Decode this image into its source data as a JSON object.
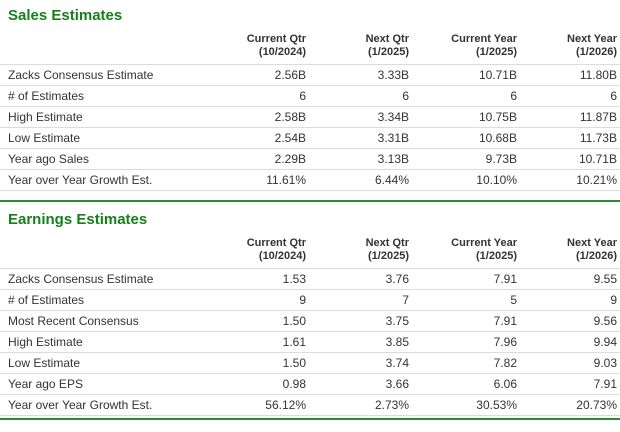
{
  "colors": {
    "title_green": "#17801a",
    "divider_green": "#2d8e30",
    "row_border": "#dcdcdc",
    "text": "#333333"
  },
  "sections": [
    {
      "title": "Sales Estimates",
      "columns": [
        {
          "label": "Current Qtr",
          "period": "(10/2024)"
        },
        {
          "label": "Next Qtr",
          "period": "(1/2025)"
        },
        {
          "label": "Current Year",
          "period": "(1/2025)"
        },
        {
          "label": "Next Year",
          "period": "(1/2026)"
        }
      ],
      "rows": [
        {
          "label": "Zacks Consensus Estimate",
          "values": [
            "2.56B",
            "3.33B",
            "10.71B",
            "11.80B"
          ]
        },
        {
          "label": "# of Estimates",
          "values": [
            "6",
            "6",
            "6",
            "6"
          ]
        },
        {
          "label": "High Estimate",
          "values": [
            "2.58B",
            "3.34B",
            "10.75B",
            "11.87B"
          ]
        },
        {
          "label": "Low Estimate",
          "values": [
            "2.54B",
            "3.31B",
            "10.68B",
            "11.73B"
          ]
        },
        {
          "label": "Year ago Sales",
          "values": [
            "2.29B",
            "3.13B",
            "9.73B",
            "10.71B"
          ]
        },
        {
          "label": "Year over Year Growth Est.",
          "values": [
            "11.61%",
            "6.44%",
            "10.10%",
            "10.21%"
          ]
        }
      ]
    },
    {
      "title": "Earnings Estimates",
      "columns": [
        {
          "label": "Current Qtr",
          "period": "(10/2024)"
        },
        {
          "label": "Next Qtr",
          "period": "(1/2025)"
        },
        {
          "label": "Current Year",
          "period": "(1/2025)"
        },
        {
          "label": "Next Year",
          "period": "(1/2026)"
        }
      ],
      "rows": [
        {
          "label": "Zacks Consensus Estimate",
          "values": [
            "1.53",
            "3.76",
            "7.91",
            "9.55"
          ]
        },
        {
          "label": "# of Estimates",
          "values": [
            "9",
            "7",
            "5",
            "9"
          ]
        },
        {
          "label": "Most Recent Consensus",
          "values": [
            "1.50",
            "3.75",
            "7.91",
            "9.56"
          ]
        },
        {
          "label": "High Estimate",
          "values": [
            "1.61",
            "3.85",
            "7.96",
            "9.94"
          ]
        },
        {
          "label": "Low Estimate",
          "values": [
            "1.50",
            "3.74",
            "7.82",
            "9.03"
          ]
        },
        {
          "label": "Year ago EPS",
          "values": [
            "0.98",
            "3.66",
            "6.06",
            "7.91"
          ]
        },
        {
          "label": "Year over Year Growth Est.",
          "values": [
            "56.12%",
            "2.73%",
            "30.53%",
            "20.73%"
          ]
        }
      ]
    }
  ]
}
